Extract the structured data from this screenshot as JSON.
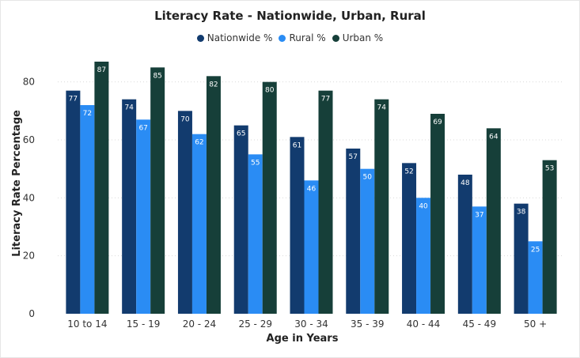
{
  "chart_data": {
    "type": "bar",
    "title": "Literacy Rate - Nationwide, Urban, Rural",
    "xlabel": "Age in Years",
    "ylabel": "Literacy Rate Percentage",
    "ylim": [
      0,
      90
    ],
    "yticks": [
      0,
      20,
      40,
      60,
      80
    ],
    "grid": true,
    "legend_position": "top-center",
    "categories": [
      "10 to 14",
      "15 - 19",
      "20 - 24",
      "25 - 29",
      "30 - 34",
      "35 - 39",
      "40 - 44",
      "45 - 49",
      "50 +"
    ],
    "series": [
      {
        "name": "Nationwide %",
        "color": "#123b6e",
        "values": [
          77,
          74,
          70,
          65,
          61,
          57,
          52,
          48,
          38
        ]
      },
      {
        "name": "Rural %",
        "color": "#2a8cf4",
        "values": [
          72,
          67,
          62,
          55,
          46,
          50,
          40,
          37,
          25
        ]
      },
      {
        "name": "Urban %",
        "color": "#163f39",
        "values": [
          87,
          85,
          82,
          80,
          77,
          74,
          69,
          64,
          53
        ]
      }
    ]
  }
}
